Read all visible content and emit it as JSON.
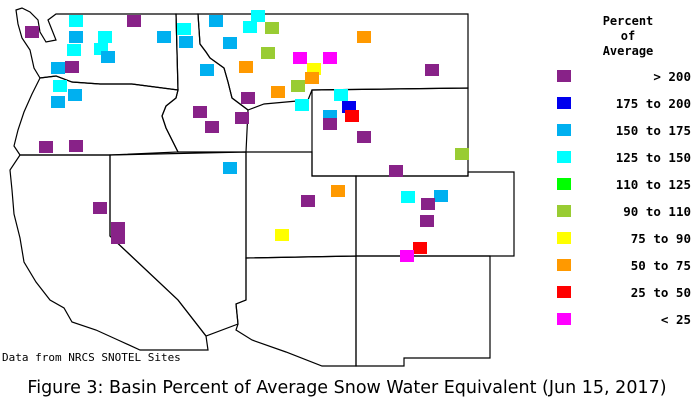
{
  "legend": {
    "title": "Percent\nof\nAverage",
    "items": [
      {
        "label": "> 200",
        "color": "#882288"
      },
      {
        "label": "175 to 200",
        "color": "#0000ee"
      },
      {
        "label": "150 to 175",
        "color": "#00b0f0"
      },
      {
        "label": "125 to 150",
        "color": "#00ffff"
      },
      {
        "label": "110 to 125",
        "color": "#00ff00"
      },
      {
        "label": "90 to 110",
        "color": "#99cc33"
      },
      {
        "label": "75 to 90",
        "color": "#ffff00"
      },
      {
        "label": "50 to 75",
        "color": "#ff9900"
      },
      {
        "label": "25 to 50",
        "color": "#ff0000"
      },
      {
        "label": "< 25",
        "color": "#ff00ff"
      }
    ]
  },
  "source_note": "Data from NRCS SNOTEL Sites",
  "caption": "Figure 3: Basin Percent of Average Snow Water Equivalent (Jun 15, 2017)"
}
